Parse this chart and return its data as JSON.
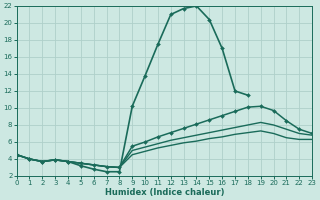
{
  "xlabel": "Humidex (Indice chaleur)",
  "xlim": [
    0,
    23
  ],
  "ylim": [
    2,
    22
  ],
  "xticks": [
    0,
    1,
    2,
    3,
    4,
    5,
    6,
    7,
    8,
    9,
    10,
    11,
    12,
    13,
    14,
    15,
    16,
    17,
    18,
    19,
    20,
    21,
    22,
    23
  ],
  "yticks": [
    2,
    4,
    6,
    8,
    10,
    12,
    14,
    16,
    18,
    20,
    22
  ],
  "bg_color": "#cde8e2",
  "line_color": "#1a6b5a",
  "grid_color": "#afd0ca",
  "curves": [
    {
      "name": "main_peaked",
      "x": [
        0,
        1,
        2,
        3,
        4,
        5,
        6,
        7,
        8,
        9,
        10,
        11,
        12,
        13,
        14,
        15,
        16,
        17,
        18,
        19,
        20,
        21
      ],
      "y": [
        4.5,
        4.0,
        3.7,
        3.9,
        3.7,
        3.2,
        2.8,
        2.5,
        2.5,
        10.2,
        13.8,
        17.5,
        21.0,
        21.7,
        22.0,
        20.4,
        17.0,
        12.0,
        11.5,
        null,
        null,
        null
      ],
      "marker": "D",
      "markersize": 2.0,
      "linewidth": 1.2
    },
    {
      "name": "upper_diagonal",
      "x": [
        0,
        1,
        2,
        3,
        4,
        5,
        6,
        7,
        8,
        9,
        10,
        11,
        12,
        13,
        14,
        15,
        16,
        17,
        18,
        19,
        20,
        21,
        22,
        23
      ],
      "y": [
        4.5,
        4.0,
        3.7,
        3.9,
        3.7,
        3.5,
        3.3,
        3.1,
        3.0,
        5.5,
        6.0,
        6.6,
        7.1,
        7.6,
        8.1,
        8.6,
        9.1,
        9.6,
        10.1,
        10.2,
        9.7,
        8.5,
        7.5,
        7.0
      ],
      "marker": "D",
      "markersize": 2.0,
      "linewidth": 1.1
    },
    {
      "name": "mid_diagonal1",
      "x": [
        0,
        1,
        2,
        3,
        4,
        5,
        6,
        7,
        8,
        9,
        10,
        11,
        12,
        13,
        14,
        15,
        16,
        17,
        18,
        19,
        20,
        21,
        22,
        23
      ],
      "y": [
        4.5,
        4.0,
        3.7,
        3.9,
        3.7,
        3.5,
        3.3,
        3.1,
        3.0,
        5.0,
        5.4,
        5.8,
        6.2,
        6.5,
        6.8,
        7.1,
        7.4,
        7.7,
        8.0,
        8.3,
        8.0,
        7.5,
        7.0,
        6.8
      ],
      "marker": null,
      "markersize": 0,
      "linewidth": 1.0
    },
    {
      "name": "lower_diagonal",
      "x": [
        0,
        1,
        2,
        3,
        4,
        5,
        6,
        7,
        8,
        9,
        10,
        11,
        12,
        13,
        14,
        15,
        16,
        17,
        18,
        19,
        20,
        21,
        22,
        23
      ],
      "y": [
        4.5,
        4.0,
        3.7,
        3.9,
        3.7,
        3.5,
        3.3,
        3.1,
        3.0,
        4.5,
        4.9,
        5.3,
        5.6,
        5.9,
        6.1,
        6.4,
        6.6,
        6.9,
        7.1,
        7.3,
        7.0,
        6.5,
        6.3,
        6.3
      ],
      "marker": null,
      "markersize": 0,
      "linewidth": 1.0
    }
  ]
}
